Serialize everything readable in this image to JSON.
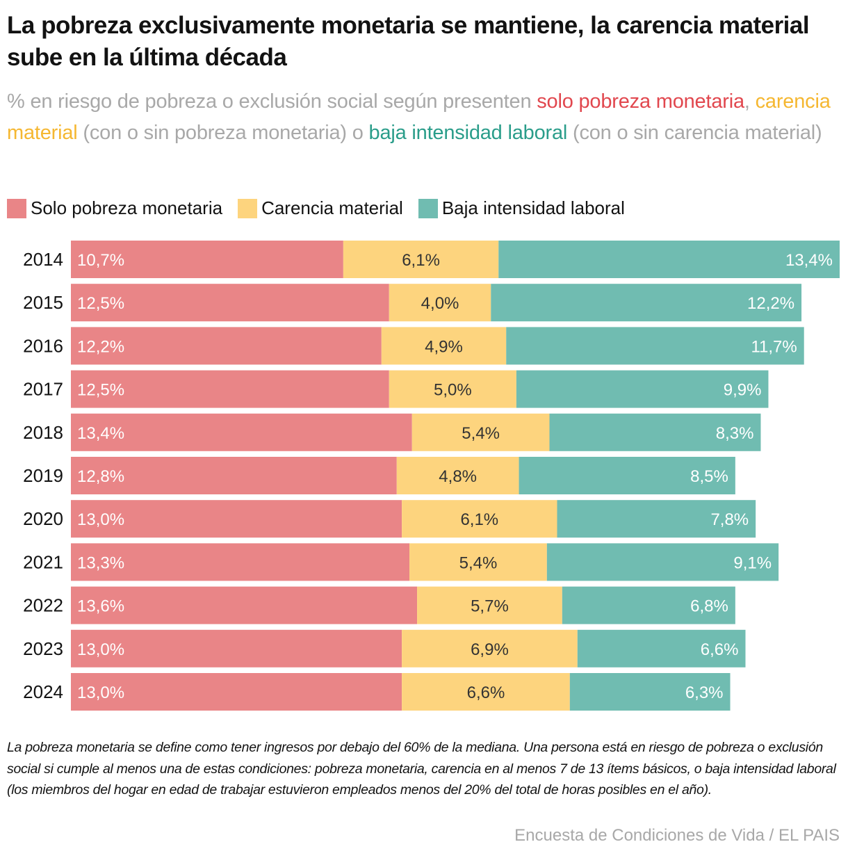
{
  "header": {
    "title": "La pobreza exclusivamente monetaria se mantiene, la carencia material sube en la última década",
    "subtitle": {
      "part1": "% en riesgo de pobreza o exclusión social según presenten ",
      "hl_red": "solo pobreza monetaria",
      "sep1": ", ",
      "hl_yellow": "carencia material",
      "part2": " (con o sin pobreza monetaria) o ",
      "hl_teal": "baja intensidad laboral",
      "part3": " (con o sin carencia material)"
    }
  },
  "colors": {
    "solo_pobreza": "#e98587",
    "carencia": "#fdd47e",
    "baja_intensidad": "#70bcb1",
    "label_light": "#ffffff",
    "label_dark": "#333333"
  },
  "chart_data": {
    "type": "bar",
    "orientation": "horizontal",
    "stacked": true,
    "title": "La pobreza exclusivamente monetaria se mantiene, la carencia material sube en la última década",
    "xlabel": "",
    "ylabel": "",
    "xlim": [
      0,
      30.2
    ],
    "grid": false,
    "legend_position": "top-left",
    "categories": [
      "2014",
      "2015",
      "2016",
      "2017",
      "2018",
      "2019",
      "2020",
      "2021",
      "2022",
      "2023",
      "2024"
    ],
    "series": [
      {
        "name": "Solo pobreza monetaria",
        "key": "solo_pobreza",
        "values": [
          10.7,
          12.5,
          12.2,
          12.5,
          13.4,
          12.8,
          13.0,
          13.3,
          13.6,
          13.0,
          13.0
        ],
        "labels": [
          "10,7%",
          "12,5%",
          "12,2%",
          "12,5%",
          "13,4%",
          "12,8%",
          "13,0%",
          "13,3%",
          "13,6%",
          "13,0%",
          "13,0%"
        ]
      },
      {
        "name": "Carencia material",
        "key": "carencia",
        "values": [
          6.1,
          4.0,
          4.9,
          5.0,
          5.4,
          4.8,
          6.1,
          5.4,
          5.7,
          6.9,
          6.6
        ],
        "labels": [
          "6,1%",
          "4,0%",
          "4,9%",
          "5,0%",
          "5,4%",
          "4,8%",
          "6,1%",
          "5,4%",
          "5,7%",
          "6,9%",
          "6,6%"
        ]
      },
      {
        "name": "Baja intensidad laboral",
        "key": "baja_intensidad",
        "values": [
          13.4,
          12.2,
          11.7,
          9.9,
          8.3,
          8.5,
          7.8,
          9.1,
          6.8,
          6.6,
          6.3
        ],
        "labels": [
          "13,4%",
          "12,2%",
          "11,7%",
          "9,9%",
          "8,3%",
          "8,5%",
          "7,8%",
          "9,1%",
          "6,8%",
          "6,6%",
          "6,3%"
        ]
      }
    ]
  },
  "legend": [
    {
      "label": "Solo pobreza monetaria",
      "key": "solo_pobreza"
    },
    {
      "label": "Carencia material",
      "key": "carencia"
    },
    {
      "label": "Baja intensidad laboral",
      "key": "baja_intensidad"
    }
  ],
  "footer": {
    "note": "La pobreza monetaria se define como tener ingresos por debajo del 60% de la mediana. Una persona está en riesgo de pobreza o exclusión social si cumple al menos una de estas condiciones: pobreza monetaria, carencia en al menos 7 de 13 ítems básicos, o baja intensidad laboral (los miembros del hogar en edad de trabajar estuvieron empleados menos del 20% del total de horas posibles en el año).",
    "source": "Encuesta de Condiciones de Vida / EL PAIS"
  }
}
